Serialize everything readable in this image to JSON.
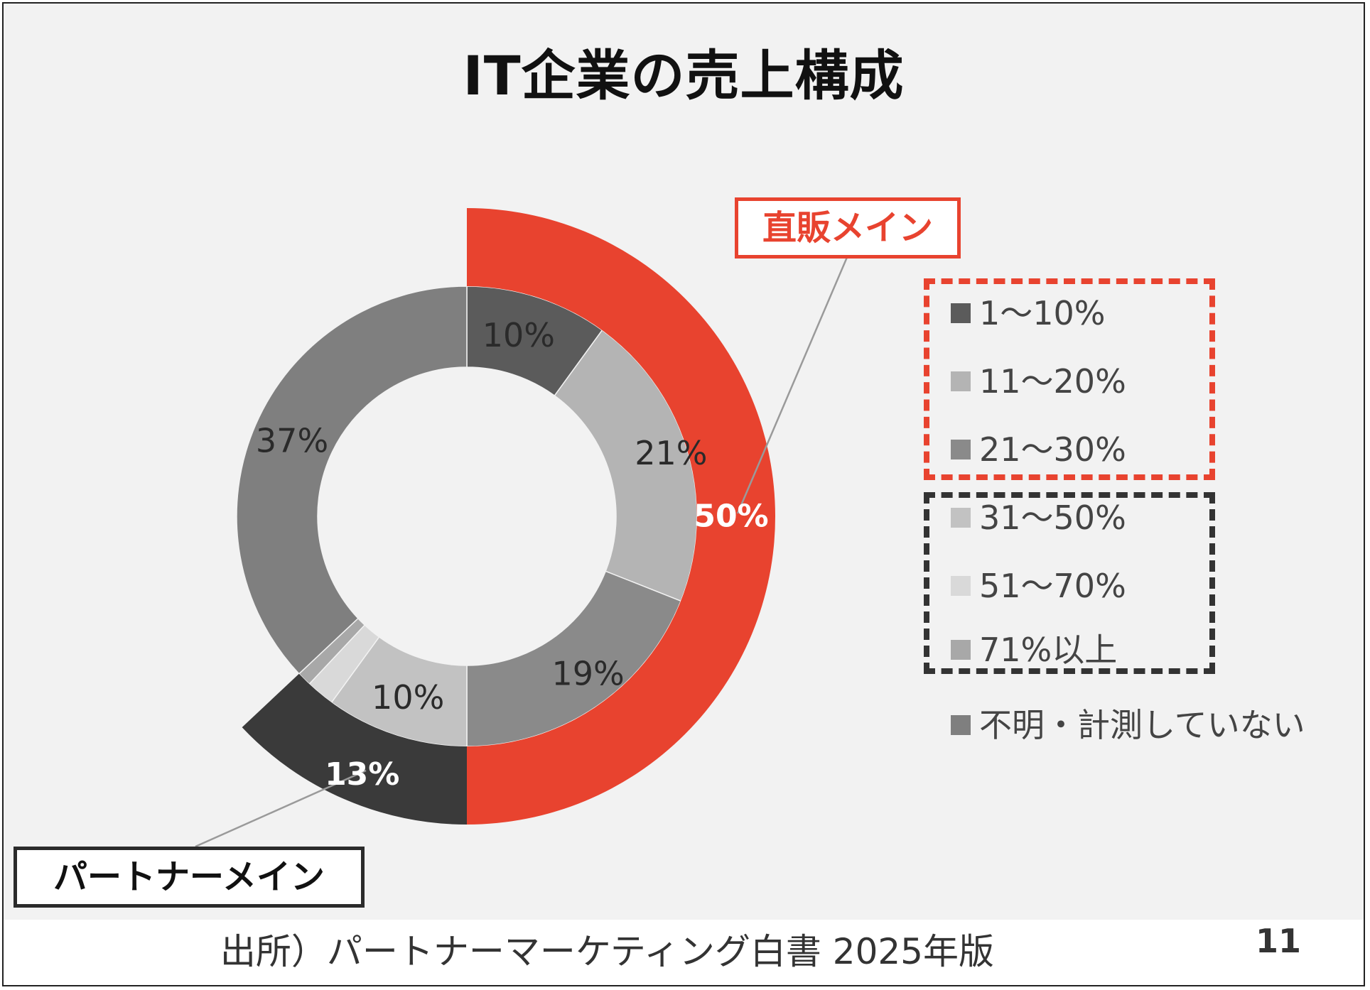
{
  "title": "IT企業の売上構成",
  "footer": {
    "source": "出所）パートナーマーケティング白書 2025年版",
    "page_number": "11"
  },
  "callouts": {
    "direct": "直販メイン",
    "partner": "パートナーメイン"
  },
  "colors": {
    "accent_red": "#e8432f",
    "dark": "#333333"
  },
  "chart_data": {
    "type": "pie",
    "subtype": "nested-donut",
    "title": "IT企業の売上構成",
    "series": [
      {
        "name": "inner",
        "labels": [
          "1〜10%",
          "11〜20%",
          "21〜30%",
          "31〜50%",
          "51〜70%",
          "71%以上",
          "不明・計測していない"
        ],
        "values": [
          10,
          21,
          19,
          10,
          2,
          1,
          37
        ],
        "display_labels": [
          "10%",
          "21%",
          "19%",
          "10%",
          "",
          "",
          "37%"
        ],
        "colors": [
          "#5b5b5b",
          "#b4b4b4",
          "#8a8a8a",
          "#c2c2c2",
          "#d9d9d9",
          "#a8a8a8",
          "#7f7f7f"
        ]
      },
      {
        "name": "outer",
        "labels": [
          "直販メイン",
          "パートナーメイン"
        ],
        "values": [
          50,
          13
        ],
        "display_labels": [
          "50%",
          "13%"
        ],
        "colors": [
          "#e8432f",
          "#3a3a3a"
        ]
      }
    ],
    "legend": [
      {
        "label": "1〜10%",
        "color": "#5b5b5b",
        "group": "direct"
      },
      {
        "label": "11〜20%",
        "color": "#b4b4b4",
        "group": "direct"
      },
      {
        "label": "21〜30%",
        "color": "#8a8a8a",
        "group": "direct"
      },
      {
        "label": "31〜50%",
        "color": "#c2c2c2",
        "group": "partner"
      },
      {
        "label": "51〜70%",
        "color": "#d9d9d9",
        "group": "partner"
      },
      {
        "label": "71%以上",
        "color": "#a8a8a8",
        "group": "partner"
      },
      {
        "label": "不明・計測していない",
        "color": "#7f7f7f",
        "group": "none"
      }
    ],
    "legend_position": "right"
  }
}
